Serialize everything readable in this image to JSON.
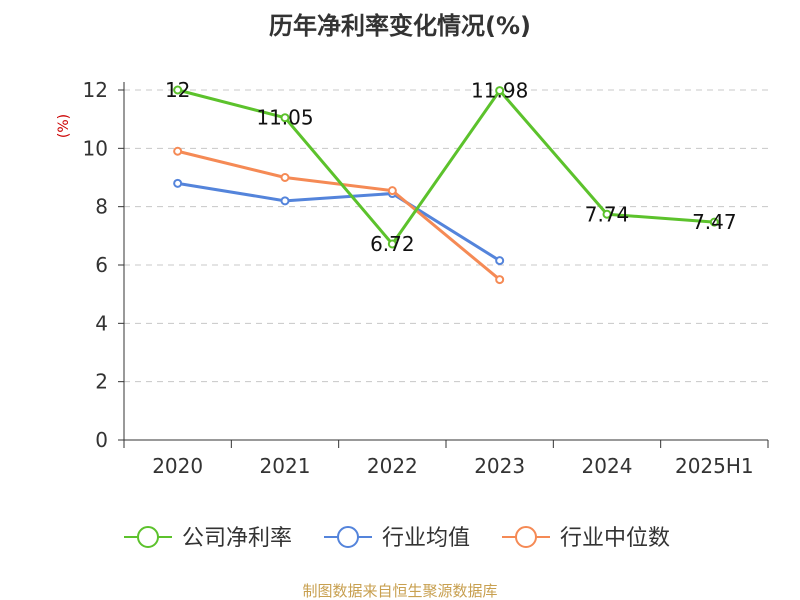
{
  "chart_data": {
    "type": "line",
    "title": "历年净利率变化情况(%)",
    "ylabel": "(%)",
    "xlabel": "",
    "categories": [
      "2020",
      "2021",
      "2022",
      "2023",
      "2024",
      "2025H1"
    ],
    "ylim": [
      0,
      12
    ],
    "yticks": [
      0,
      2,
      4,
      6,
      8,
      10,
      12
    ],
    "grid": true,
    "legend_position": "bottom",
    "series": [
      {
        "name": "公司净利率",
        "color": "#5cc22c",
        "values": [
          12,
          11.05,
          6.72,
          11.98,
          7.74,
          7.47
        ],
        "labels": [
          "12",
          "11.05",
          "6.72",
          "11.98",
          "7.74",
          "7.47"
        ]
      },
      {
        "name": "行业均值",
        "color": "#5484db",
        "values": [
          8.8,
          8.2,
          8.45,
          6.15,
          null,
          null
        ]
      },
      {
        "name": "行业中位数",
        "color": "#f58a55",
        "values": [
          9.9,
          9.0,
          8.55,
          5.5,
          null,
          null
        ]
      }
    ]
  },
  "footer": {
    "source": "制图数据来自恒生聚源数据库"
  }
}
